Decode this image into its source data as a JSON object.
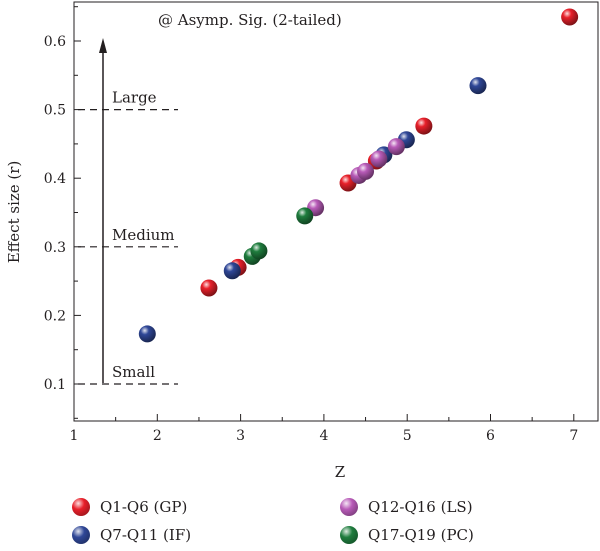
{
  "chart_data": {
    "type": "scatter",
    "title": "",
    "annotation": "@ Asymp. Sig. (2-tailed)",
    "xlabel": "Z",
    "ylabel": "Effect size (r)",
    "xlim": [
      1,
      7.3
    ],
    "ylim": [
      0.05,
      0.66
    ],
    "x_ticks": [
      1,
      2,
      3,
      4,
      5,
      6,
      7
    ],
    "y_ticks": [
      0.1,
      0.2,
      0.3,
      0.4,
      0.5,
      0.6
    ],
    "grid": false,
    "legend_position": "bottom",
    "thresholds": [
      {
        "label": "Small",
        "value": 0.1
      },
      {
        "label": "Medium",
        "value": 0.3
      },
      {
        "label": "Large",
        "value": 0.5
      }
    ],
    "series": [
      {
        "name": "Q1-Q6 (GP)",
        "color": "#e8202a",
        "points": [
          [
            2.62,
            0.24
          ],
          [
            2.97,
            0.27
          ],
          [
            4.29,
            0.393
          ],
          [
            4.63,
            0.425
          ],
          [
            5.2,
            0.476
          ],
          [
            6.95,
            0.635
          ]
        ]
      },
      {
        "name": "Q7-Q11 (IF)",
        "color": "#2f4797",
        "points": [
          [
            1.88,
            0.173
          ],
          [
            2.9,
            0.265
          ],
          [
            4.72,
            0.434
          ],
          [
            4.99,
            0.456
          ],
          [
            5.85,
            0.535
          ]
        ]
      },
      {
        "name": "Q12-Q16 (LS)",
        "color": "#b85bb8",
        "points": [
          [
            3.9,
            0.357
          ],
          [
            4.42,
            0.404
          ],
          [
            4.5,
            0.41
          ],
          [
            4.66,
            0.428
          ],
          [
            4.87,
            0.446
          ]
        ]
      },
      {
        "name": "Q17-Q19 (PC)",
        "color": "#1f7d3e",
        "points": [
          [
            3.77,
            0.345
          ],
          [
            3.14,
            0.286
          ],
          [
            3.22,
            0.294
          ]
        ]
      }
    ]
  }
}
